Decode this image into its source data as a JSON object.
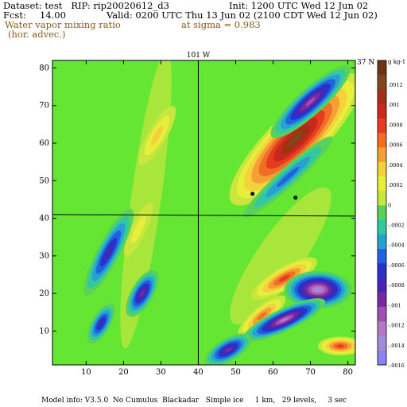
{
  "header": {
    "dataset_line": "Dataset: test   RIP: rip20020612_d3",
    "init_line": "Init: 1200 UTC Wed 12 Jun 02",
    "fcst_label": "Fcst:",
    "fcst_value": "14.00",
    "valid_line": "Valid: 0200 UTC Thu 13 Jun 02 (2100 CDT Wed 12 Jun 02)",
    "field_name": "Water vapor mixing ratio",
    "field_sub": "(hor. advec.)",
    "level": "at sigma = 0.983"
  },
  "footer": {
    "model_info": "Model info: V3.5.0  No Cumulus  Blackadar   Simple ice     1 km,   29 levels,     3 sec"
  },
  "colors": {
    "positive_ramp": [
      "#c8e63c",
      "#e6f03c",
      "#f5d23c",
      "#f5a032",
      "#f06e28",
      "#e63c1e",
      "#c8281e",
      "#a03214",
      "#82461e",
      "#6e3214"
    ],
    "negative_ramp": [
      "#5ad25a",
      "#32c8a0",
      "#28a0d2",
      "#1e64dc",
      "#2832c8",
      "#4628b4",
      "#7828a0",
      "#a050b4",
      "#b478c8",
      "#a08cdc",
      "#8c82f0"
    ],
    "background_field": "#64e632"
  },
  "chart_data": {
    "type": "heatmap",
    "title": "Water vapor mixing ratio (hor. advec.) at sigma = 0.983",
    "units": "g kg-1",
    "xlim": [
      1,
      82
    ],
    "ylim": [
      1,
      82
    ],
    "x_ticks": [
      10,
      20,
      30,
      40,
      50,
      60,
      70,
      80
    ],
    "y_ticks": [
      10,
      20,
      30,
      40,
      50,
      60,
      70,
      80
    ],
    "map_lines": {
      "vertical": {
        "label": "101 W",
        "x": 40
      },
      "horizontal": {
        "label": "37 N",
        "y": 41
      }
    },
    "points": [
      {
        "x": 54.5,
        "y": 46.5
      },
      {
        "x": 66,
        "y": 45.5
      }
    ],
    "colorbar": {
      "unit_label": "g kg-1",
      "labels": [
        ".0012",
        ".001",
        ".0008",
        ".0006",
        ".0004",
        ".0002",
        "0",
        "-.0002",
        "-.0004",
        "-.0006",
        "-.0008",
        "-.001",
        "-.0012",
        "-.0014",
        "-.0016"
      ]
    },
    "features": [
      {
        "name": "positive_tongue_ne",
        "x": 64,
        "y": 60,
        "value": 0.0012
      },
      {
        "name": "negative_band_north",
        "x": 68,
        "y": 69,
        "value": -0.0008
      },
      {
        "name": "negative_band_south",
        "x": 63,
        "y": 52,
        "value": -0.0004
      },
      {
        "name": "negative_cell_sw1",
        "x": 18,
        "y": 30,
        "value": -0.0006
      },
      {
        "name": "negative_cell_sw2",
        "x": 25,
        "y": 19,
        "value": -0.0008
      },
      {
        "name": "negative_cell_se",
        "x": 72,
        "y": 20,
        "value": -0.0012
      },
      {
        "name": "positive_cell_se",
        "x": 62,
        "y": 24,
        "value": 0.0008
      }
    ]
  }
}
